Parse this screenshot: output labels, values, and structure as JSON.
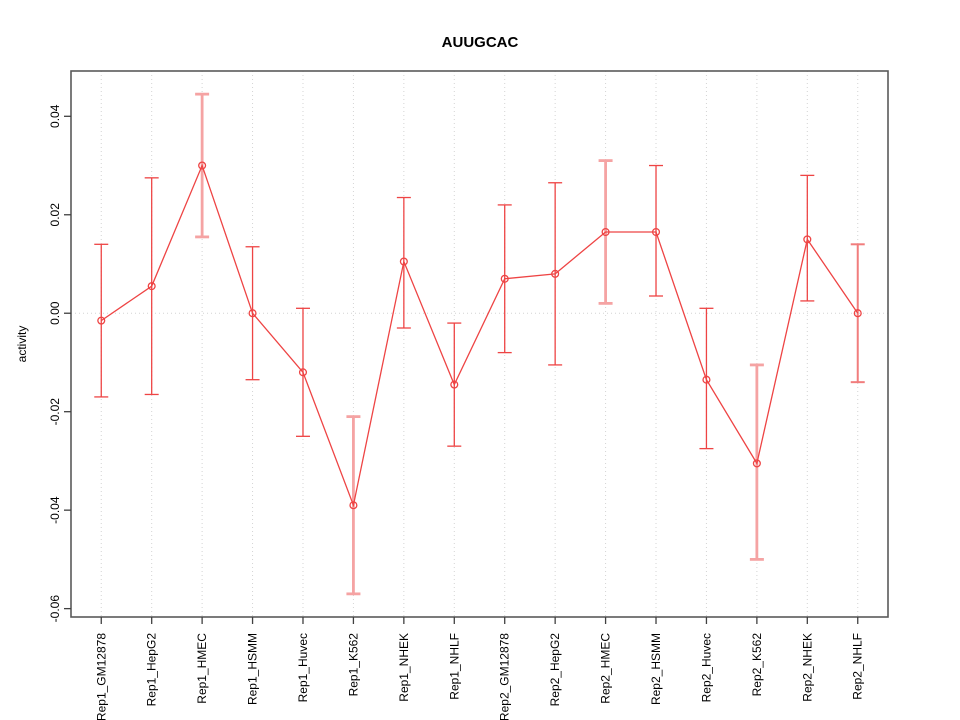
{
  "chart_data": {
    "type": "line",
    "title": "AUUGCAC",
    "xlabel": "",
    "ylabel": "activity",
    "categories": [
      "Rep1_GM12878",
      "Rep1_HepG2",
      "Rep1_HMEC",
      "Rep1_HSMM",
      "Rep1_Huvec",
      "Rep1_K562",
      "Rep1_NHEK",
      "Rep1_NHLF",
      "Rep2_GM12878",
      "Rep2_HepG2",
      "Rep2_HMEC",
      "Rep2_HSMM",
      "Rep2_Huvec",
      "Rep2_K562",
      "Rep2_NHEK",
      "Rep2_NHLF"
    ],
    "series": [
      {
        "name": "activity",
        "values": [
          -0.0015,
          0.0055,
          0.03,
          0.0,
          -0.012,
          -0.039,
          0.0105,
          -0.0145,
          0.007,
          0.008,
          0.0165,
          0.0165,
          -0.0135,
          -0.0305,
          0.015,
          0.0
        ],
        "error_low": [
          -0.017,
          -0.0165,
          0.0155,
          -0.0135,
          -0.025,
          -0.057,
          -0.003,
          -0.027,
          -0.008,
          -0.0105,
          0.002,
          0.0035,
          -0.0275,
          -0.05,
          0.0025,
          -0.014
        ],
        "error_high": [
          0.014,
          0.0275,
          0.0445,
          0.0135,
          0.001,
          -0.021,
          0.0235,
          -0.002,
          0.022,
          0.0265,
          0.031,
          0.03,
          0.001,
          -0.0105,
          0.028,
          0.014
        ]
      }
    ],
    "errorbar_styles": [
      "thin",
      "thin",
      "thick",
      "thin",
      "thin",
      "thick",
      "thin",
      "thin",
      "thin",
      "thin",
      "thick",
      "thin",
      "thin",
      "thick",
      "thin",
      "medium"
    ],
    "yticks": [
      0.04,
      0.02,
      0.0,
      -0.02,
      -0.04,
      -0.06
    ],
    "ytick_labels": [
      "0.04",
      "0.02",
      "0.00",
      "-0.02",
      "-0.04",
      "-0.06"
    ],
    "ylim": [
      -0.0617,
      0.0492
    ],
    "xlim": [
      0.4,
      16.6
    ],
    "grid": {
      "vertical": "dotted line at each category",
      "horizontal": "dotted line at y = 0.00"
    },
    "legend": "none",
    "marker": "open-circle"
  },
  "styles": {
    "background": "#ffffff",
    "line_color": "#ee4444",
    "point_color": "#ee4444",
    "errorbar_thin_color": "#ee4444",
    "errorbar_medium_color": "#f17d7d",
    "errorbar_thick_color": "#f5a3a3",
    "grid_color": "#d4d4d4",
    "box_color": "#5a5a5a",
    "tick_color": "#404040",
    "text_color": "#000000"
  }
}
